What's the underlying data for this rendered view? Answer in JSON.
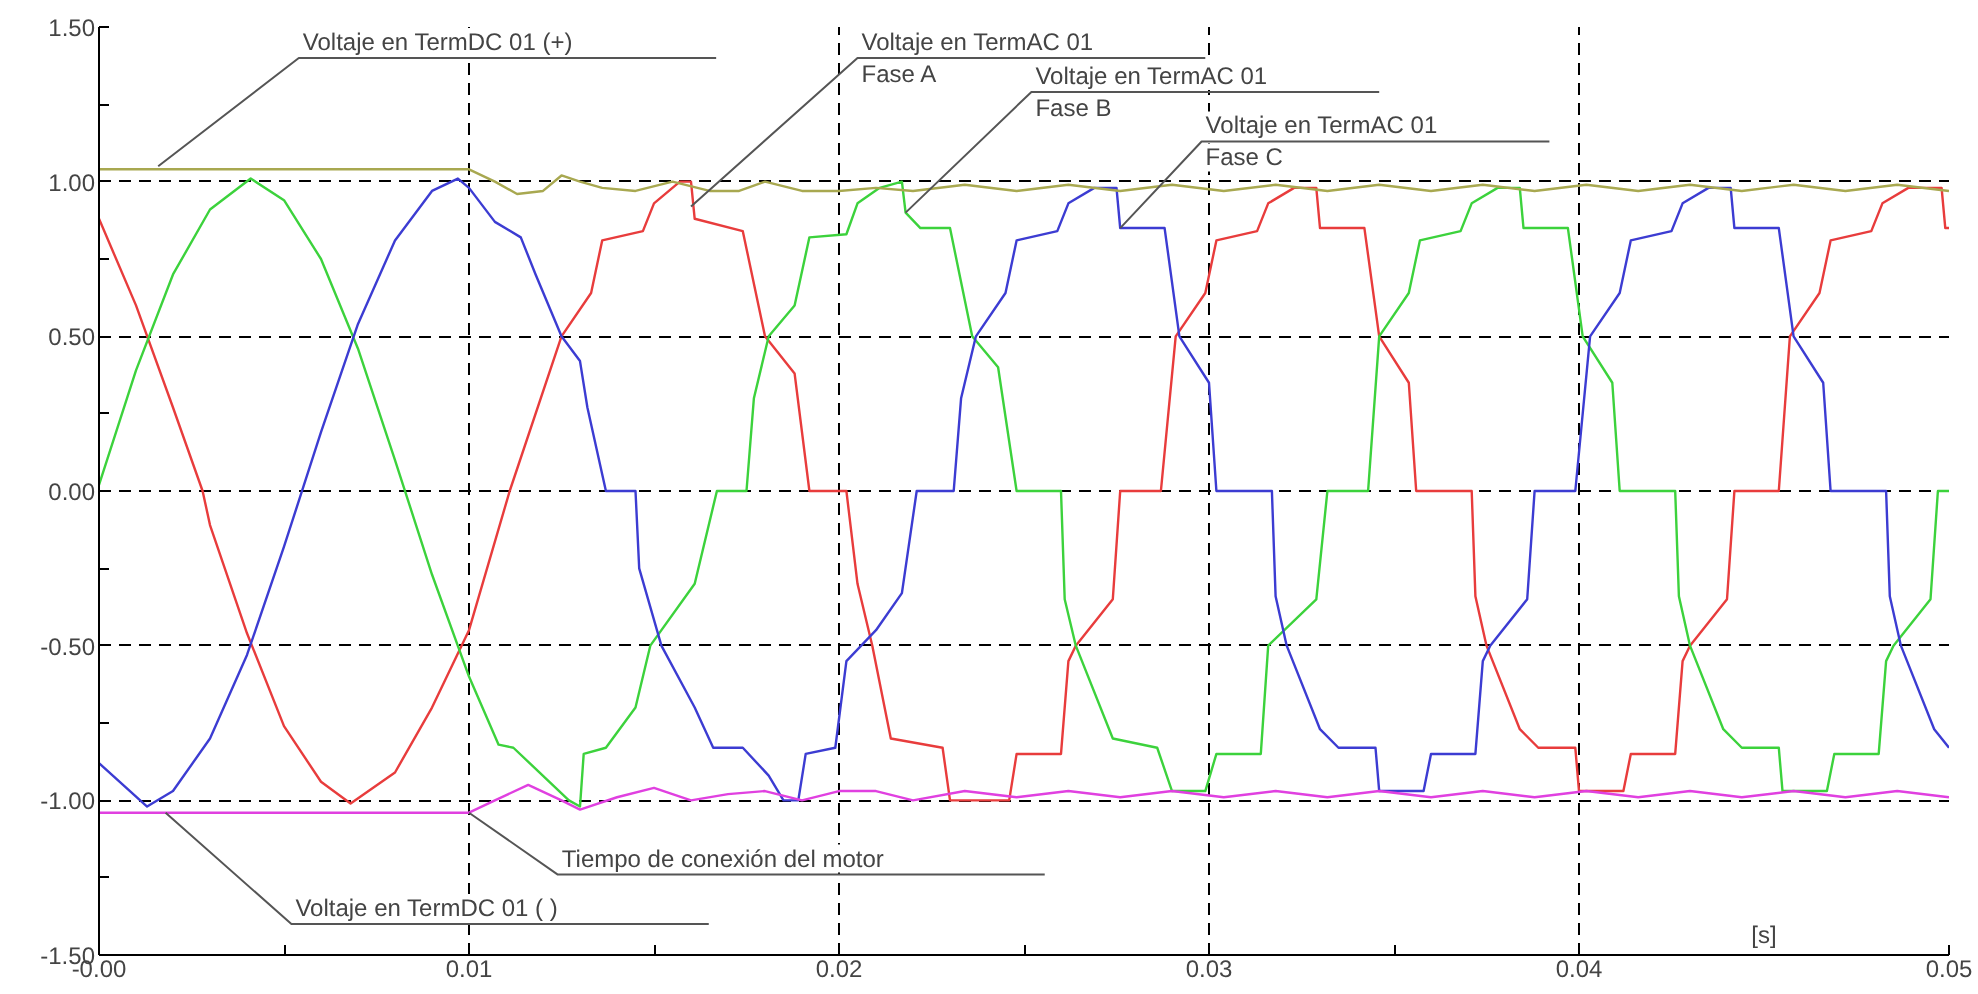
{
  "chart_data": {
    "type": "line",
    "xlabel": "[s]",
    "xlim": [
      0,
      0.05
    ],
    "ylim": [
      -1.5,
      1.5
    ],
    "xticks": [
      {
        "value": 0,
        "label": "-0.00"
      },
      {
        "value": 0.005,
        "label": null
      },
      {
        "value": 0.01,
        "label": "0.01"
      },
      {
        "value": 0.015,
        "label": null
      },
      {
        "value": 0.02,
        "label": "0.02"
      },
      {
        "value": 0.025,
        "label": null
      },
      {
        "value": 0.03,
        "label": "0.03"
      },
      {
        "value": 0.035,
        "label": null
      },
      {
        "value": 0.04,
        "label": "0.04"
      },
      {
        "value": 0.05,
        "label": "0.05"
      }
    ],
    "yticks": [
      {
        "value": -1.5,
        "label": "-1.50"
      },
      {
        "value": -1.25,
        "label": null
      },
      {
        "value": -1.0,
        "label": "-1.00"
      },
      {
        "value": -0.75,
        "label": null
      },
      {
        "value": -0.5,
        "label": "-0.50"
      },
      {
        "value": -0.25,
        "label": null
      },
      {
        "value": 0,
        "label": "0.00"
      },
      {
        "value": 0.25,
        "label": null
      },
      {
        "value": 0.5,
        "label": "0.50"
      },
      {
        "value": 0.75,
        "label": null
      },
      {
        "value": 1.0,
        "label": "1.00"
      },
      {
        "value": 1.25,
        "label": null
      },
      {
        "value": 1.5,
        "label": "1.50"
      }
    ],
    "grid": true,
    "line_style": "solid",
    "series": [
      {
        "color": "#e83c3c",
        "x": [
          0,
          0.001,
          0.002,
          0.0028,
          0.003,
          0.004,
          0.005,
          0.006,
          0.0068,
          0.008,
          0.009,
          0.01,
          0.0111,
          0.0125,
          0.0133,
          0.0136,
          0.0147,
          0.015,
          0.0157,
          0.016,
          0.0161,
          0.0174,
          0.018,
          0.0188,
          0.0192,
          0.0202,
          0.0205,
          0.0209,
          0.0214,
          0.0228,
          0.023,
          0.0246,
          0.0248,
          0.026,
          0.0262,
          0.0264,
          0.0274,
          0.0276,
          0.0287,
          0.0291,
          0.0299,
          0.0302,
          0.0313,
          0.0316,
          0.0323,
          0.0329,
          0.033,
          0.0342,
          0.0346,
          0.0354,
          0.0356,
          0.0371,
          0.0372,
          0.0375,
          0.0384,
          0.0389,
          0.0399,
          0.04,
          0.0412,
          0.0414,
          0.0426,
          0.0428,
          0.043,
          0.044,
          0.0442,
          0.0454,
          0.0457,
          0.0465,
          0.0468,
          0.0479,
          0.0482,
          0.0489,
          0.0498,
          0.0499,
          0.05
        ],
        "values": [
          0.88,
          0.6,
          0.27,
          0,
          -0.11,
          -0.46,
          -0.76,
          -0.94,
          -1.01,
          -0.91,
          -0.7,
          -0.45,
          0,
          0.5,
          0.64,
          0.81,
          0.84,
          0.93,
          1.0,
          1.0,
          0.88,
          0.84,
          0.5,
          0.38,
          0,
          0,
          -0.3,
          -0.5,
          -0.8,
          -0.83,
          -1.0,
          -1.0,
          -0.85,
          -0.85,
          -0.55,
          -0.5,
          -0.35,
          0,
          0,
          0.5,
          0.64,
          0.81,
          0.84,
          0.93,
          0.98,
          0.98,
          0.85,
          0.85,
          0.5,
          0.35,
          0,
          0,
          -0.34,
          -0.5,
          -0.77,
          -0.83,
          -0.83,
          -0.97,
          -0.97,
          -0.85,
          -0.85,
          -0.55,
          -0.5,
          -0.35,
          0,
          0,
          0.5,
          0.64,
          0.81,
          0.84,
          0.93,
          0.98,
          0.98,
          0.85,
          0.85
        ]
      },
      {
        "color": "#3cd23c",
        "x": [
          0,
          0.001,
          0.002,
          0.003,
          0.0041,
          0.005,
          0.006,
          0.007,
          0.008,
          0.009,
          0.01,
          0.0108,
          0.0112,
          0.0127,
          0.013,
          0.0131,
          0.0137,
          0.0145,
          0.0149,
          0.0161,
          0.0167,
          0.0175,
          0.0177,
          0.0181,
          0.0188,
          0.0192,
          0.0202,
          0.0205,
          0.0211,
          0.0217,
          0.0218,
          0.0222,
          0.023,
          0.0236,
          0.0243,
          0.0248,
          0.026,
          0.0261,
          0.0264,
          0.0274,
          0.0286,
          0.029,
          0.0299,
          0.0302,
          0.0314,
          0.0316,
          0.0329,
          0.0332,
          0.0343,
          0.0346,
          0.0354,
          0.0357,
          0.0368,
          0.0371,
          0.0378,
          0.0384,
          0.0385,
          0.0397,
          0.0401,
          0.0409,
          0.0411,
          0.0426,
          0.0427,
          0.043,
          0.0439,
          0.0444,
          0.0454,
          0.0455,
          0.0467,
          0.0469,
          0.0481,
          0.0483,
          0.0485,
          0.0495,
          0.0497,
          0.05
        ],
        "values": [
          0.02,
          0.39,
          0.7,
          0.91,
          1.01,
          0.94,
          0.75,
          0.46,
          0.1,
          -0.27,
          -0.6,
          -0.82,
          -0.83,
          -1.0,
          -1.02,
          -0.85,
          -0.83,
          -0.7,
          -0.5,
          -0.3,
          0,
          0,
          0.3,
          0.5,
          0.6,
          0.82,
          0.83,
          0.93,
          0.98,
          1.0,
          0.9,
          0.85,
          0.85,
          0.5,
          0.4,
          0,
          0,
          -0.35,
          -0.5,
          -0.8,
          -0.83,
          -0.97,
          -0.97,
          -0.85,
          -0.85,
          -0.5,
          -0.35,
          0,
          0,
          0.5,
          0.64,
          0.81,
          0.84,
          0.93,
          0.98,
          0.98,
          0.85,
          0.85,
          0.5,
          0.35,
          0,
          0,
          -0.34,
          -0.5,
          -0.77,
          -0.83,
          -0.83,
          -0.97,
          -0.97,
          -0.85,
          -0.85,
          -0.55,
          -0.5,
          -0.35,
          0,
          0
        ]
      },
      {
        "color": "#3c3cd2",
        "x": [
          0,
          0.0013,
          0.002,
          0.003,
          0.004,
          0.005,
          0.006,
          0.007,
          0.008,
          0.009,
          0.0097,
          0.01,
          0.0107,
          0.0114,
          0.0118,
          0.0125,
          0.013,
          0.0132,
          0.0137,
          0.0145,
          0.0146,
          0.0152,
          0.0161,
          0.0166,
          0.0174,
          0.0181,
          0.0185,
          0.0189,
          0.0191,
          0.0199,
          0.0202,
          0.021,
          0.0217,
          0.0221,
          0.0231,
          0.0233,
          0.0237,
          0.0245,
          0.0248,
          0.0259,
          0.0262,
          0.0269,
          0.0275,
          0.0276,
          0.0288,
          0.0292,
          0.03,
          0.0302,
          0.0317,
          0.0318,
          0.0321,
          0.033,
          0.0335,
          0.0345,
          0.0346,
          0.0358,
          0.036,
          0.0372,
          0.0374,
          0.0376,
          0.0386,
          0.0388,
          0.0399,
          0.0403,
          0.0411,
          0.0414,
          0.0425,
          0.0428,
          0.0435,
          0.0441,
          0.0442,
          0.0454,
          0.0458,
          0.0466,
          0.0468,
          0.0483,
          0.0484,
          0.0487,
          0.0496,
          0.05
        ],
        "values": [
          -0.88,
          -1.02,
          -0.97,
          -0.8,
          -0.53,
          -0.18,
          0.19,
          0.54,
          0.81,
          0.97,
          1.01,
          0.98,
          0.87,
          0.82,
          0.7,
          0.5,
          0.42,
          0.27,
          0,
          0,
          -0.25,
          -0.5,
          -0.7,
          -0.83,
          -0.83,
          -0.92,
          -1.0,
          -1.0,
          -0.85,
          -0.83,
          -0.55,
          -0.45,
          -0.33,
          0,
          0,
          0.3,
          0.5,
          0.64,
          0.81,
          0.84,
          0.93,
          0.98,
          0.98,
          0.85,
          0.85,
          0.5,
          0.35,
          0,
          0,
          -0.34,
          -0.5,
          -0.77,
          -0.83,
          -0.83,
          -0.97,
          -0.97,
          -0.85,
          -0.85,
          -0.55,
          -0.5,
          -0.35,
          0,
          0,
          0.5,
          0.64,
          0.81,
          0.84,
          0.93,
          0.98,
          0.98,
          0.85,
          0.85,
          0.5,
          0.35,
          0,
          0,
          -0.34,
          -0.5,
          -0.77,
          -0.83
        ]
      },
      {
        "color": "#a8a850",
        "x": [
          0,
          0.01,
          0.0107,
          0.0113,
          0.012,
          0.0125,
          0.013,
          0.0136,
          0.0145,
          0.0155,
          0.0165,
          0.0173,
          0.018,
          0.019,
          0.02,
          0.021,
          0.022,
          0.0234,
          0.0248,
          0.0262,
          0.0276,
          0.029,
          0.0304,
          0.0318,
          0.0332,
          0.0346,
          0.036,
          0.0374,
          0.0388,
          0.0402,
          0.0416,
          0.043,
          0.0444,
          0.0458,
          0.0472,
          0.0486,
          0.05
        ],
        "values": [
          1.04,
          1.04,
          1.0,
          0.96,
          0.97,
          1.02,
          1.0,
          0.98,
          0.97,
          1.0,
          0.97,
          0.97,
          1.0,
          0.97,
          0.97,
          0.98,
          0.97,
          0.99,
          0.97,
          0.99,
          0.97,
          0.99,
          0.97,
          0.99,
          0.97,
          0.99,
          0.97,
          0.99,
          0.97,
          0.99,
          0.97,
          0.99,
          0.97,
          0.99,
          0.97,
          0.99,
          0.97
        ]
      },
      {
        "color": "#e040e0",
        "x": [
          0,
          0.01,
          0.0107,
          0.0116,
          0.0125,
          0.013,
          0.014,
          0.015,
          0.016,
          0.017,
          0.018,
          0.019,
          0.02,
          0.021,
          0.022,
          0.0234,
          0.0248,
          0.0262,
          0.0276,
          0.029,
          0.0304,
          0.0318,
          0.0332,
          0.0346,
          0.036,
          0.0374,
          0.0388,
          0.0402,
          0.0416,
          0.043,
          0.0444,
          0.0458,
          0.0472,
          0.0486,
          0.05
        ],
        "values": [
          -1.04,
          -1.04,
          -1.0,
          -0.95,
          -1.0,
          -1.03,
          -0.99,
          -0.96,
          -1.0,
          -0.98,
          -0.97,
          -1.0,
          -0.97,
          -0.97,
          -1.0,
          -0.97,
          -0.99,
          -0.97,
          -0.99,
          -0.97,
          -0.99,
          -0.97,
          -0.99,
          -0.97,
          -0.99,
          -0.97,
          -0.99,
          -0.97,
          -0.99,
          -0.97,
          -0.99,
          -0.97,
          -0.99,
          -0.97,
          -0.99
        ]
      }
    ],
    "annotations": [
      {
        "text": "Voltaje en TermDC 01 (+)",
        "x": 0.0016,
        "y": 1.05
      },
      {
        "text": "Voltaje en TermAC 01\nFase A",
        "x": 0.016,
        "y": 0.92
      },
      {
        "text": "Voltaje en TermAC 01\nFase B",
        "x": 0.0218,
        "y": 0.9
      },
      {
        "text": "Voltaje en TermAC 01\nFase C",
        "x": 0.0276,
        "y": 0.85
      },
      {
        "text": "Voltaje en TermDC 01 ( )",
        "x": 0.0018,
        "y": -1.04
      },
      {
        "text": "Tiempo de conexión del motor",
        "x": 0.01,
        "y": -1.04
      }
    ]
  }
}
